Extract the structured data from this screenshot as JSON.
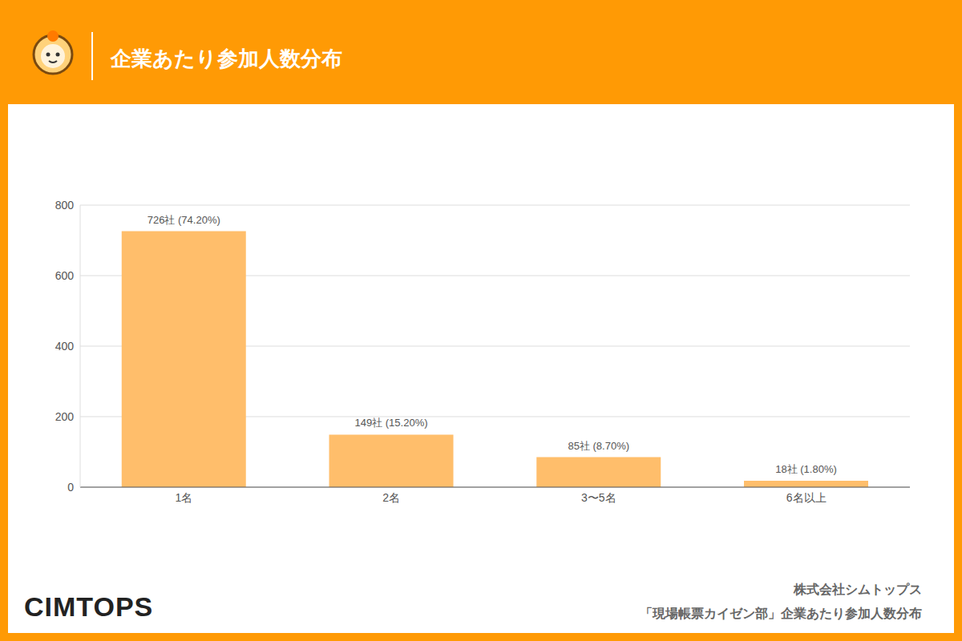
{
  "header": {
    "title": "企業あたり参加人数分布"
  },
  "chart_data": {
    "type": "bar",
    "categories": [
      "1名",
      "2名",
      "3〜5名",
      "6名以上"
    ],
    "values": [
      726,
      149,
      85,
      18
    ],
    "value_labels": [
      "726社 (74.20%)",
      "149社 (15.20%)",
      "85社 (8.70%)",
      "18社 (1.80%)"
    ],
    "color": "#ffbe6b",
    "ylim": [
      0,
      800
    ],
    "yticks": [
      0,
      200,
      400,
      600,
      800
    ],
    "grid": true,
    "data_labels": true
  },
  "footer": {
    "logo": "CIMTOPS",
    "company": "株式会社シムトップス",
    "caption": "「現場帳票カイゼン部」企業あたり参加人数分布"
  }
}
